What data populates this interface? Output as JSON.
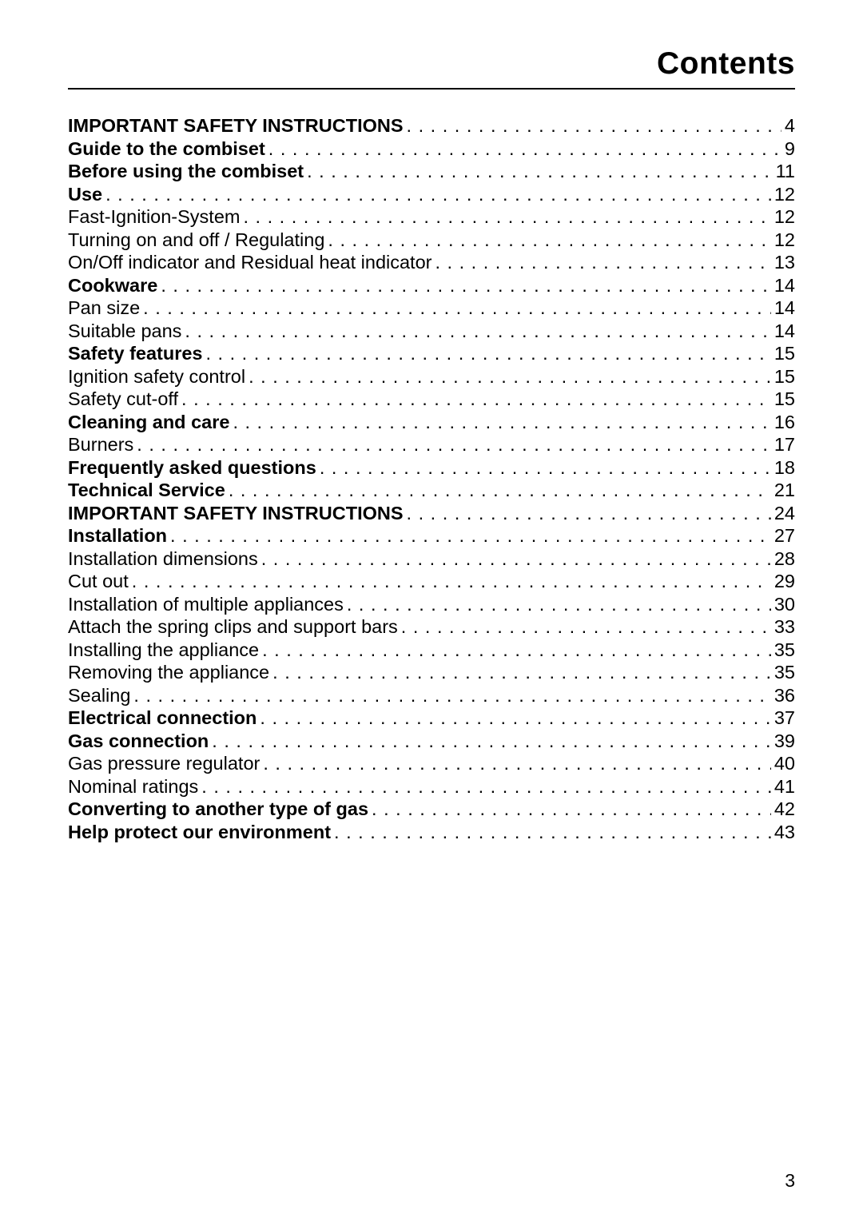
{
  "header": {
    "title": "Contents",
    "title_fontsize": 39,
    "title_fontweight": 700,
    "rule_color": "#000000"
  },
  "toc": {
    "fontsize": 23.5,
    "line_spacing": 5,
    "text_color": "#000000",
    "items": [
      {
        "label": "IMPORTANT SAFETY INSTRUCTIONS",
        "page": "4",
        "bold": true
      },
      {
        "label": "Guide to the combiset",
        "page": "9",
        "bold": true
      },
      {
        "label": "Before using the combiset",
        "page": "11",
        "bold": true
      },
      {
        "label": "Use",
        "page": "12",
        "bold": true
      },
      {
        "label": "Fast-Ignition-System",
        "page": "12",
        "bold": false
      },
      {
        "label": "Turning on and off / Regulating",
        "page": "12",
        "bold": false
      },
      {
        "label": "On/Off indicator and Residual heat indicator",
        "page": "13",
        "bold": false
      },
      {
        "label": "Cookware",
        "page": "14",
        "bold": true
      },
      {
        "label": "Pan size",
        "page": "14",
        "bold": false
      },
      {
        "label": "Suitable pans",
        "page": "14",
        "bold": false
      },
      {
        "label": "Safety features",
        "page": "15",
        "bold": true
      },
      {
        "label": "Ignition safety control",
        "page": "15",
        "bold": false
      },
      {
        "label": "Safety cut-off",
        "page": "15",
        "bold": false
      },
      {
        "label": "Cleaning and care",
        "page": "16",
        "bold": true
      },
      {
        "label": "Burners",
        "page": "17",
        "bold": false
      },
      {
        "label": "Frequently asked questions",
        "page": "18",
        "bold": true
      },
      {
        "label": "Technical Service",
        "page": "21",
        "bold": true
      },
      {
        "label": "IMPORTANT SAFETY INSTRUCTIONS",
        "page": "24",
        "bold": true
      },
      {
        "label": "Installation",
        "page": "27",
        "bold": true
      },
      {
        "label": "Installation dimensions",
        "page": "28",
        "bold": false
      },
      {
        "label": "Cut out",
        "page": "29",
        "bold": false
      },
      {
        "label": "Installation of multiple appliances",
        "page": "30",
        "bold": false
      },
      {
        "label": "Attach the spring clips and support bars",
        "page": "33",
        "bold": false
      },
      {
        "label": "Installing the appliance",
        "page": "35",
        "bold": false
      },
      {
        "label": "Removing the appliance",
        "page": "35",
        "bold": false
      },
      {
        "label": "Sealing",
        "page": "36",
        "bold": false
      },
      {
        "label": "Electrical connection",
        "page": "37",
        "bold": true
      },
      {
        "label": "Gas connection",
        "page": "39",
        "bold": true
      },
      {
        "label": "Gas pressure regulator",
        "page": "40",
        "bold": false
      },
      {
        "label": "Nominal ratings",
        "page": "41",
        "bold": false
      },
      {
        "label": "Converting to another type of gas",
        "page": "42",
        "bold": true
      },
      {
        "label": "Help protect our environment",
        "page": "43",
        "bold": true
      }
    ]
  },
  "footer": {
    "page_number": "3",
    "fontsize": 23
  },
  "background_color": "#ffffff"
}
